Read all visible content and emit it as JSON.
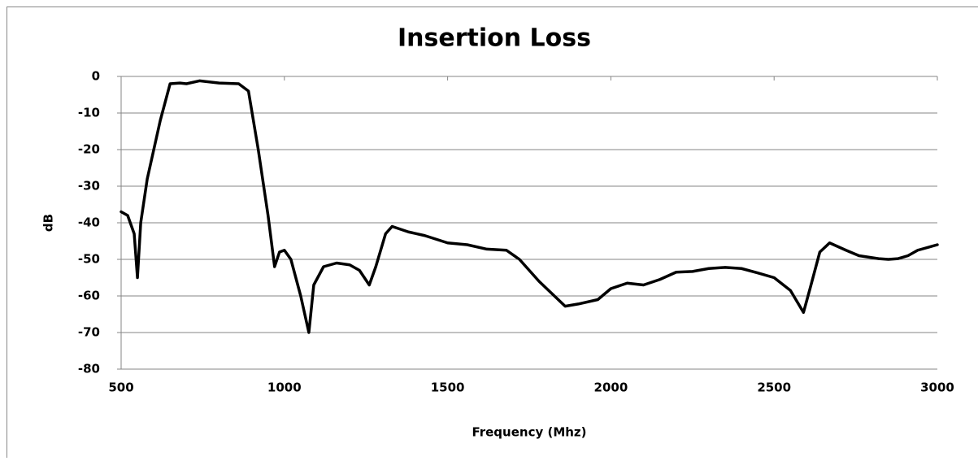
{
  "chart_data": {
    "type": "line",
    "title": "Insertion Loss",
    "x_label": "Frequency (Mhz)",
    "y_label": "dB",
    "xlim": [
      500,
      3000
    ],
    "xticks": [
      500,
      1000,
      1500,
      2000,
      2500,
      3000
    ],
    "ylim": [
      -80,
      0
    ],
    "yticks": [
      0,
      -10,
      -20,
      -30,
      -40,
      -50,
      -60,
      -70,
      -80
    ],
    "grid": true,
    "series": [
      {
        "color": "#000000",
        "x": [
          500,
          520,
          540,
          550,
          560,
          580,
          620,
          650,
          680,
          700,
          740,
          800,
          860,
          890,
          920,
          950,
          970,
          985,
          1000,
          1020,
          1050,
          1075,
          1090,
          1120,
          1160,
          1200,
          1230,
          1260,
          1280,
          1310,
          1330,
          1380,
          1430,
          1500,
          1560,
          1620,
          1680,
          1720,
          1780,
          1860,
          1900,
          1960,
          2000,
          2050,
          2100,
          2150,
          2200,
          2250,
          2300,
          2350,
          2400,
          2450,
          2500,
          2550,
          2590,
          2610,
          2640,
          2670,
          2720,
          2760,
          2820,
          2850,
          2880,
          2910,
          2940,
          3000
        ],
        "values": [
          -37,
          -38,
          -43,
          -55,
          -40,
          -28,
          -12,
          -2,
          -1.8,
          -2,
          -1.2,
          -1.8,
          -2,
          -4,
          -20,
          -38,
          -52,
          -48,
          -47.5,
          -50,
          -60,
          -70,
          -57,
          -52,
          -51,
          -51.5,
          -53,
          -57,
          -52,
          -43,
          -41,
          -42.5,
          -43.5,
          -45.5,
          -46,
          -47.2,
          -47.5,
          -50,
          -56,
          -62.8,
          -62.2,
          -61,
          -58,
          -56.5,
          -57,
          -55.5,
          -53.5,
          -53.3,
          -52.5,
          -52.2,
          -52.5,
          -53.7,
          -55,
          -58.5,
          -64.5,
          -58,
          -48,
          -45.5,
          -47.5,
          -49,
          -49.8,
          -50,
          -49.8,
          -49,
          -47.5,
          -46
        ]
      }
    ]
  }
}
